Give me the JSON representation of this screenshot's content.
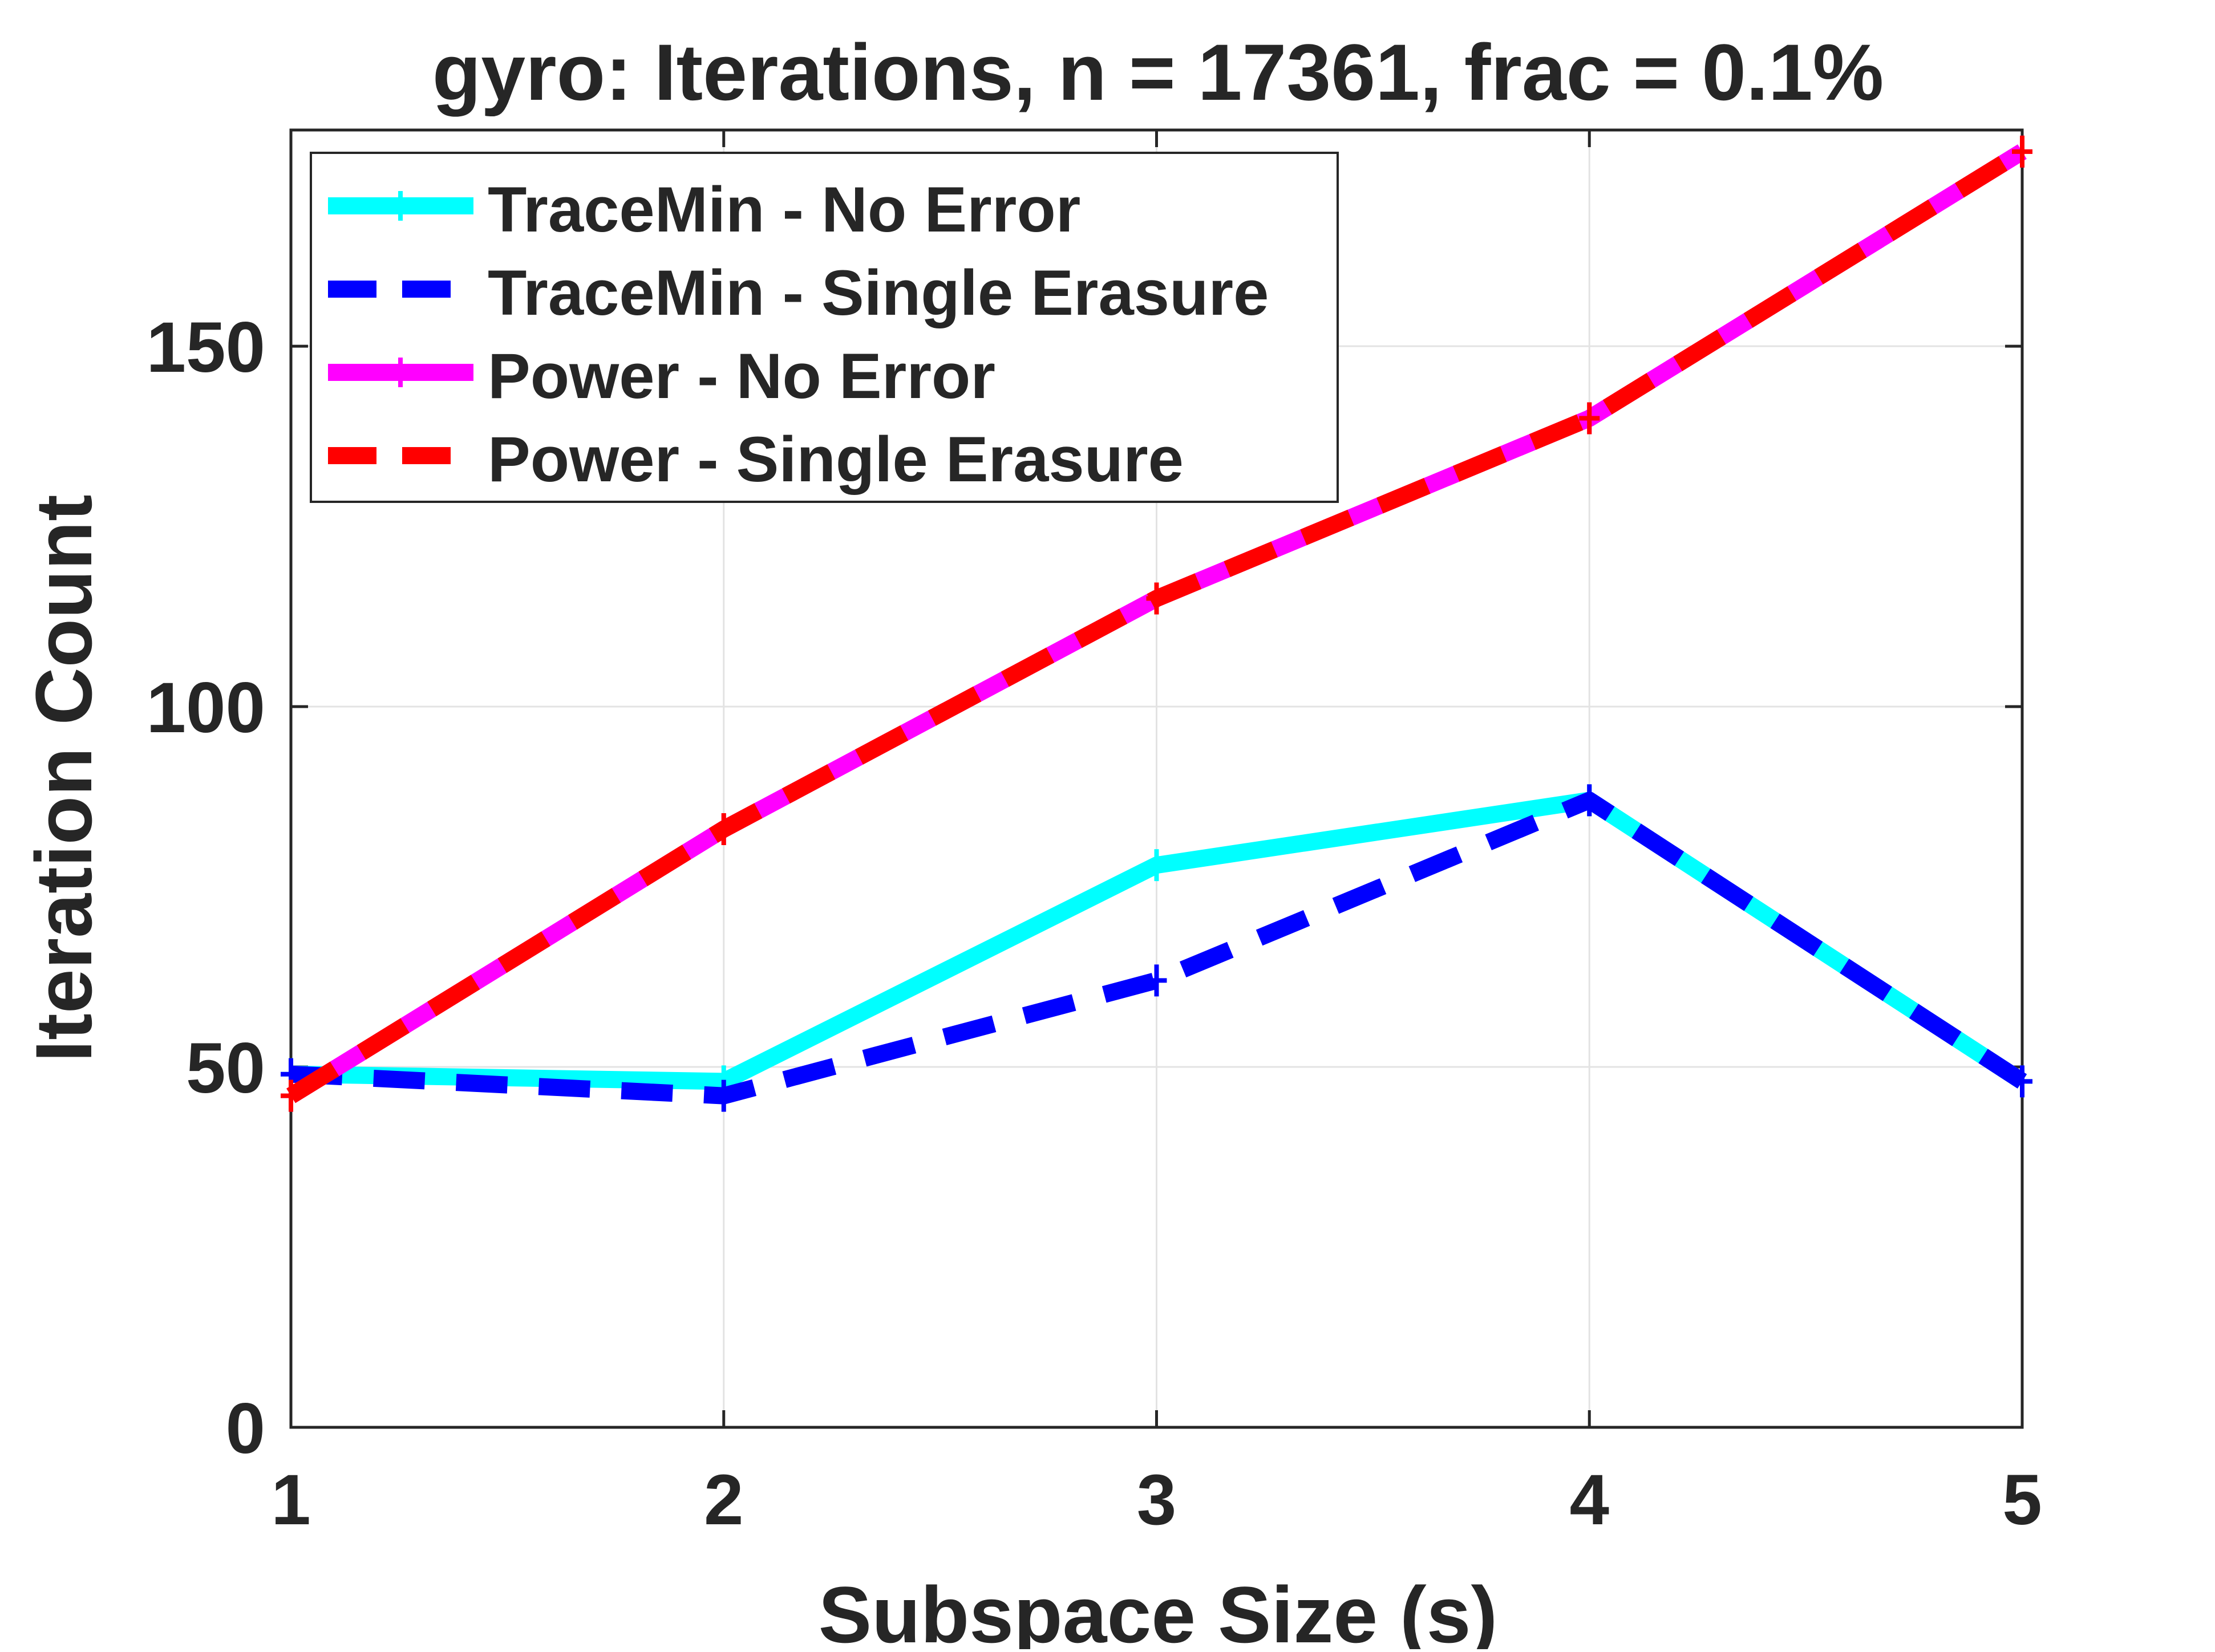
{
  "chart_data": {
    "type": "line",
    "title": "gyro: Iterations, n = 17361, frac = 0.1%",
    "xlabel": "Subspace Size (s)",
    "ylabel": "Iteration Count",
    "x": [
      1,
      2,
      3,
      4,
      5
    ],
    "xlim": [
      1,
      5
    ],
    "ylim": [
      0,
      180
    ],
    "xticks": [
      "1",
      "2",
      "3",
      "4",
      "5"
    ],
    "yticks": [
      "0",
      "50",
      "100",
      "150"
    ],
    "ytick_values": [
      0,
      50,
      100,
      150
    ],
    "grid": true,
    "legend_position": "top-left",
    "series": [
      {
        "name": "TraceMin - No Error",
        "values": [
          49,
          48,
          78,
          87,
          48
        ],
        "color": "#00ffff",
        "dash": "solid"
      },
      {
        "name": "TraceMin - Single Erasure",
        "values": [
          49,
          46,
          62,
          87,
          48
        ],
        "color": "#0000ff",
        "dash": "dashed"
      },
      {
        "name": "Power - No Error",
        "values": [
          46,
          83,
          115,
          140,
          177
        ],
        "color": "#ff00ff",
        "dash": "solid"
      },
      {
        "name": "Power - Single Erasure",
        "values": [
          46,
          83,
          115,
          140,
          177
        ],
        "color": "#ff0000",
        "dash": "dashed"
      }
    ]
  }
}
